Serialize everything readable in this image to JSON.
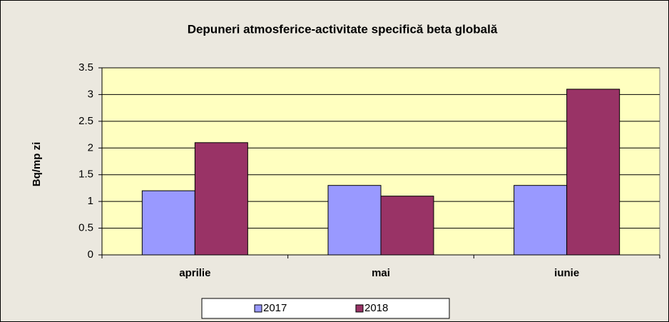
{
  "chart_data": {
    "type": "bar",
    "title": "Depuneri atmosferice-activitate specifică beta globală",
    "y_label": "Bq/mp zi",
    "categories": [
      "aprilie",
      "mai",
      "iunie"
    ],
    "series": [
      {
        "name": "2017",
        "color": "#9999ff",
        "values": [
          1.2,
          1.3,
          1.3
        ]
      },
      {
        "name": "2018",
        "color": "#993366",
        "values": [
          2.1,
          1.1,
          3.1
        ]
      }
    ],
    "ylim": [
      0,
      3.5
    ],
    "yticks": [
      0,
      0.5,
      1,
      1.5,
      2,
      2.5,
      3,
      3.5
    ],
    "grid": true,
    "legend": "bottom"
  }
}
